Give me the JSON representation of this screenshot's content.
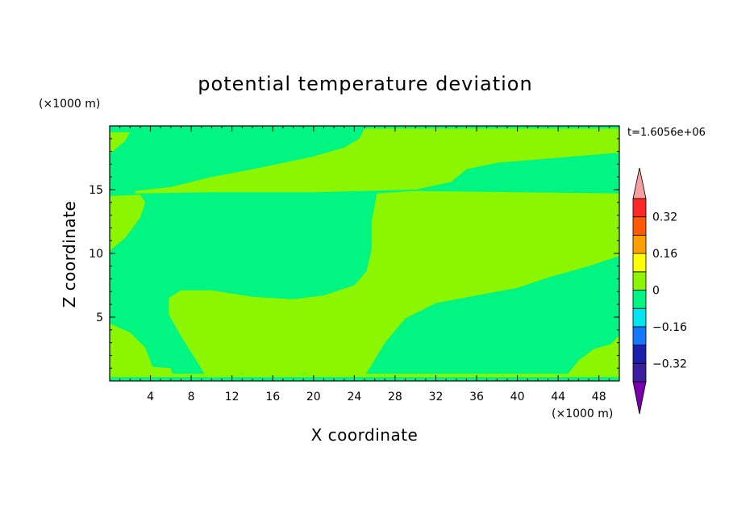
{
  "chart_data": {
    "type": "heatmap",
    "title": "potential temperature deviation",
    "xlabel": "X coordinate",
    "ylabel": "Z coordinate",
    "x_unit": "(×1000 m)",
    "y_unit": "(×1000 m)",
    "time_label": "t=1.6056e+06",
    "xlim": [
      0,
      50
    ],
    "ylim": [
      0,
      20
    ],
    "x_ticks": [
      4,
      8,
      12,
      16,
      20,
      24,
      28,
      32,
      36,
      40,
      44,
      48
    ],
    "y_ticks": [
      5,
      10,
      15
    ],
    "background_level": "-0.08 to 0",
    "colorbar": {
      "levels": [
        -0.4,
        -0.32,
        -0.24,
        -0.16,
        -0.08,
        0,
        0.08,
        0.16,
        0.24,
        0.32,
        0.4
      ],
      "colors": [
        "#3c1ea0",
        "#1e1eaa",
        "#1478ff",
        "#00e6f0",
        "#00f582",
        "#8cf500",
        "#ffff00",
        "#ffa000",
        "#ff5a00",
        "#ff2828"
      ],
      "under_color": "#7800aa",
      "over_color": "#f5a0a0",
      "tick_labels": [
        {
          "value": 0.32,
          "label": "0.32"
        },
        {
          "value": 0.16,
          "label": "0.16"
        },
        {
          "value": 0,
          "label": "0"
        },
        {
          "value": -0.16,
          "label": "−0.16"
        },
        {
          "value": -0.32,
          "label": "−0.32"
        }
      ]
    },
    "regions": [
      {
        "level": "0 to 0.08",
        "color": "#8cf500",
        "polygon": [
          [
            0,
            19.5
          ],
          [
            2,
            19.5
          ],
          [
            1.5,
            18.8
          ],
          [
            0,
            17.8
          ]
        ]
      },
      {
        "level": "0 to 0.08",
        "color": "#8cf500",
        "polygon": [
          [
            0,
            14.5
          ],
          [
            3,
            14.6
          ],
          [
            3.5,
            14.0
          ],
          [
            3,
            12.8
          ],
          [
            1.5,
            11.2
          ],
          [
            0,
            10.2
          ]
        ]
      },
      {
        "level": "0 to 0.08",
        "color": "#8cf500",
        "polygon": [
          [
            2.5,
            14.9
          ],
          [
            6,
            15.2
          ],
          [
            10,
            16
          ],
          [
            14,
            16.6
          ],
          [
            20,
            17.6
          ],
          [
            23,
            18.3
          ],
          [
            24.5,
            19.0
          ],
          [
            25,
            19.8
          ],
          [
            50,
            19.8
          ],
          [
            50,
            17.9
          ],
          [
            47,
            17.7
          ],
          [
            38,
            17.1
          ],
          [
            35,
            16.6
          ],
          [
            33.5,
            15.6
          ],
          [
            30,
            15.0
          ],
          [
            20,
            14.8
          ],
          [
            10,
            14.8
          ],
          [
            2.5,
            14.7
          ]
        ]
      },
      {
        "level": "0 to 0.08",
        "color": "#8cf500",
        "polygon": [
          [
            26.2,
            14.7
          ],
          [
            30,
            14.9
          ],
          [
            40,
            14.8
          ],
          [
            50,
            14.7
          ],
          [
            50,
            9.8
          ],
          [
            47,
            9.0
          ],
          [
            43,
            8.1
          ],
          [
            40,
            7.3
          ],
          [
            36,
            6.7
          ],
          [
            32,
            6.1
          ],
          [
            29,
            4.9
          ],
          [
            27,
            3.0
          ],
          [
            25.5,
            1.0
          ],
          [
            25,
            0.4
          ],
          [
            21,
            0.4
          ],
          [
            19,
            0.6
          ],
          [
            17,
            0.3
          ],
          [
            15,
            0.3
          ],
          [
            13,
            0.6
          ],
          [
            11,
            0.3
          ],
          [
            9.5,
            0.3
          ],
          [
            8.5,
            1.6
          ],
          [
            7,
            3.5
          ],
          [
            5.8,
            5.2
          ],
          [
            5.8,
            6.5
          ],
          [
            7,
            7.1
          ],
          [
            10,
            7.1
          ],
          [
            14,
            6.6
          ],
          [
            18,
            6.4
          ],
          [
            21,
            6.7
          ],
          [
            24,
            7.5
          ],
          [
            25.2,
            8.6
          ],
          [
            25.7,
            10.3
          ],
          [
            25.7,
            12.5
          ],
          [
            26.0,
            13.7
          ]
        ]
      },
      {
        "level": "0 to 0.08",
        "color": "#8cf500",
        "polygon": [
          [
            0,
            4.5
          ],
          [
            2,
            3.8
          ],
          [
            3.5,
            2.6
          ],
          [
            4.2,
            1.1
          ],
          [
            6,
            1.0
          ],
          [
            6.2,
            0.4
          ],
          [
            0,
            0.4
          ]
        ]
      },
      {
        "level": "0 to 0.08",
        "color": "#8cf500",
        "polygon": [
          [
            44.8,
            0.4
          ],
          [
            46,
            1.6
          ],
          [
            47.5,
            2.5
          ],
          [
            49.2,
            2.9
          ],
          [
            50,
            3.6
          ],
          [
            50,
            0.4
          ]
        ]
      },
      {
        "level": "0 to 0.08",
        "color": "#8cf500",
        "polygon": [
          [
            0,
            0.55
          ],
          [
            50,
            0.55
          ],
          [
            50,
            0.3
          ],
          [
            0,
            0.3
          ]
        ]
      }
    ]
  }
}
